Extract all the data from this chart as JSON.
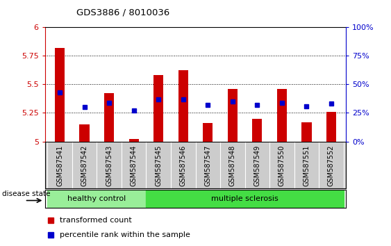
{
  "title": "GDS3886 / 8010036",
  "samples": [
    "GSM587541",
    "GSM587542",
    "GSM587543",
    "GSM587544",
    "GSM587545",
    "GSM587546",
    "GSM587547",
    "GSM587548",
    "GSM587549",
    "GSM587550",
    "GSM587551",
    "GSM587552"
  ],
  "red_values": [
    5.82,
    5.15,
    5.42,
    5.02,
    5.58,
    5.62,
    5.16,
    5.46,
    5.2,
    5.46,
    5.17,
    5.26
  ],
  "blue_values": [
    5.43,
    5.3,
    5.34,
    5.27,
    5.37,
    5.37,
    5.32,
    5.35,
    5.32,
    5.34,
    5.31,
    5.33
  ],
  "ylim_left": [
    5.0,
    6.0
  ],
  "ylim_right": [
    0,
    100
  ],
  "yticks_left": [
    5.0,
    5.25,
    5.5,
    5.75,
    6.0
  ],
  "yticks_right": [
    0,
    25,
    50,
    75,
    100
  ],
  "ytick_labels_left": [
    "5",
    "5.25",
    "5.5",
    "5.75",
    "6"
  ],
  "ytick_labels_right": [
    "0%",
    "25%",
    "50%",
    "75%",
    "100%"
  ],
  "bar_color": "#cc0000",
  "dot_color": "#0000cc",
  "bar_base": 5.0,
  "groups": [
    {
      "label": "healthy control",
      "start": 0,
      "end": 3,
      "color": "#99ee99"
    },
    {
      "label": "multiple sclerosis",
      "start": 4,
      "end": 11,
      "color": "#44dd44"
    }
  ],
  "disease_state_label": "disease state",
  "legend_red": "transformed count",
  "legend_blue": "percentile rank within the sample",
  "bar_color_hex": "#cc0000",
  "dot_color_hex": "#0000cc",
  "tick_color_left": "#cc0000",
  "tick_color_right": "#0000cc",
  "xtick_bg": "#cccccc",
  "plot_bg": "#ffffff",
  "fig_w": 5.63,
  "fig_h": 3.54,
  "bar_width": 0.4
}
